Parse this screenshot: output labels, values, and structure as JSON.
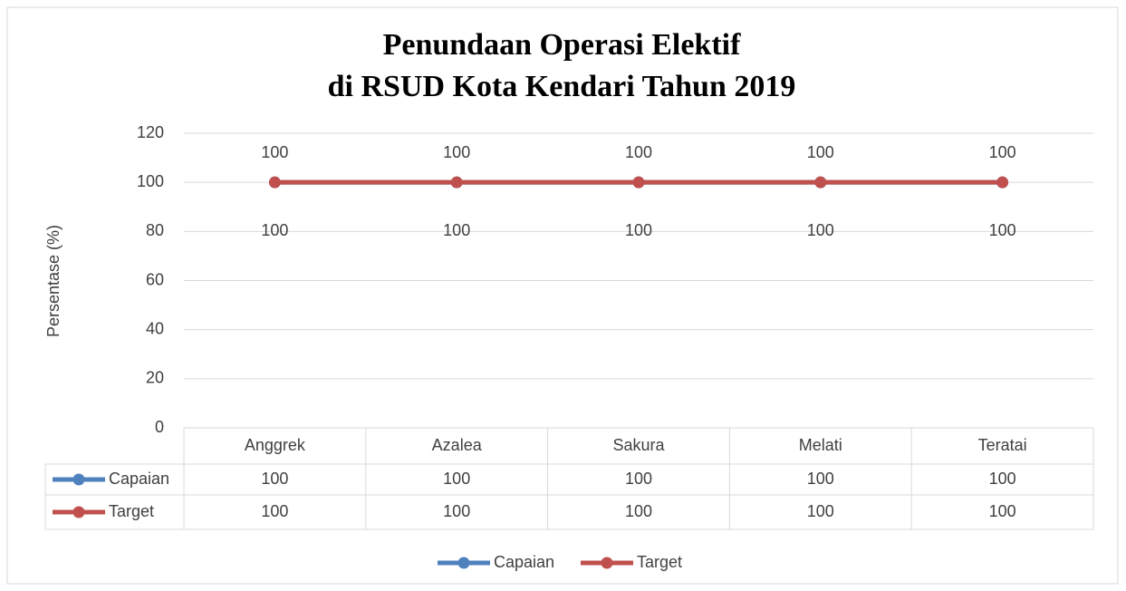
{
  "chart_data": {
    "type": "line",
    "title": [
      "Penundaan Operasi Elektif",
      "di RSUD Kota Kendari Tahun 2019"
    ],
    "y_label": "Persentase (%)",
    "categories": [
      "Anggrek",
      "Azalea",
      "Sakura",
      "Melati",
      "Teratai"
    ],
    "series": [
      {
        "name": "Capaian",
        "color": "#4f81bd",
        "values": [
          100,
          100,
          100,
          100,
          100
        ]
      },
      {
        "name": "Target",
        "color": "#c0504d",
        "values": [
          100,
          100,
          100,
          100,
          100
        ]
      }
    ],
    "ylim": [
      0,
      120
    ],
    "yticks": [
      0,
      20,
      40,
      60,
      80,
      100,
      120
    ],
    "grid": true,
    "data_table": true,
    "legend": "bottom"
  }
}
